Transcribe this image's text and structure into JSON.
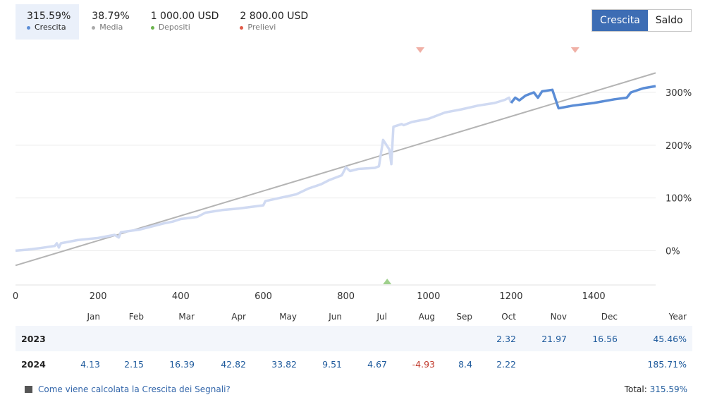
{
  "stats": [
    {
      "value": "315.59%",
      "label": "Crescita",
      "color": "#5b8dd6",
      "active": true
    },
    {
      "value": "38.79%",
      "label": "Media",
      "color": "#aaaaaa",
      "active": false
    },
    {
      "value": "1 000.00 USD",
      "label": "Depositi",
      "color": "#6bb34d",
      "active": false
    },
    {
      "value": "2 800.00 USD",
      "label": "Prelievi",
      "color": "#e05a48",
      "active": false
    }
  ],
  "toggle": {
    "growth": "Crescita",
    "balance": "Saldo"
  },
  "colors": {
    "accent": "#3d6db4",
    "growth_line": "#5b8dd6",
    "growth_line_faded": "#d0daf2",
    "trend_line": "#b4b4b4",
    "deposit": "#6bb34d",
    "withdrawal": "#f0b0a6",
    "negative": "#c0392b",
    "positive": "#1e5a9c"
  },
  "chart_data": {
    "type": "line",
    "title": "",
    "xlabel": "",
    "ylabel": "",
    "x_ticks": [
      0,
      200,
      400,
      600,
      800,
      1000,
      1200,
      1400
    ],
    "y_ticks": [
      "0%",
      "100%",
      "200%",
      "300%"
    ],
    "xlim": [
      0,
      1550
    ],
    "ylim": [
      -65,
      395
    ],
    "grid": true,
    "series": [
      {
        "name": "Crescita",
        "points": [
          [
            0,
            0
          ],
          [
            30,
            2
          ],
          [
            60,
            5
          ],
          [
            95,
            9
          ],
          [
            100,
            14
          ],
          [
            105,
            6
          ],
          [
            110,
            14
          ],
          [
            150,
            20
          ],
          [
            200,
            24
          ],
          [
            240,
            30
          ],
          [
            250,
            25
          ],
          [
            255,
            35
          ],
          [
            300,
            40
          ],
          [
            340,
            48
          ],
          [
            360,
            52
          ],
          [
            380,
            55
          ],
          [
            400,
            60
          ],
          [
            440,
            64
          ],
          [
            460,
            72
          ],
          [
            500,
            77
          ],
          [
            540,
            80
          ],
          [
            600,
            86
          ],
          [
            605,
            94
          ],
          [
            640,
            100
          ],
          [
            680,
            107
          ],
          [
            710,
            118
          ],
          [
            740,
            126
          ],
          [
            760,
            134
          ],
          [
            790,
            143
          ],
          [
            800,
            158
          ],
          [
            810,
            151
          ],
          [
            830,
            155
          ],
          [
            870,
            157
          ],
          [
            880,
            160
          ],
          [
            890,
            210
          ],
          [
            905,
            192
          ],
          [
            910,
            164
          ],
          [
            915,
            235
          ],
          [
            935,
            240
          ],
          [
            940,
            238
          ],
          [
            960,
            244
          ],
          [
            1000,
            250
          ],
          [
            1040,
            262
          ],
          [
            1080,
            268
          ],
          [
            1120,
            275
          ],
          [
            1160,
            280
          ],
          [
            1185,
            286
          ],
          [
            1195,
            290
          ],
          [
            1200,
            280
          ],
          [
            1210,
            290
          ],
          [
            1220,
            285
          ],
          [
            1235,
            294
          ],
          [
            1255,
            300
          ],
          [
            1265,
            290
          ],
          [
            1275,
            302
          ],
          [
            1300,
            305
          ],
          [
            1315,
            270
          ],
          [
            1350,
            275
          ],
          [
            1400,
            280
          ],
          [
            1450,
            287
          ],
          [
            1480,
            290
          ],
          [
            1490,
            300
          ],
          [
            1520,
            308
          ],
          [
            1550,
            312
          ]
        ]
      },
      {
        "name": "Trend",
        "points": [
          [
            0,
            -28
          ],
          [
            1550,
            337
          ]
        ]
      }
    ],
    "highlight_from_x": 1200,
    "markers": [
      {
        "type": "Prelievi",
        "x": 980
      },
      {
        "type": "Prelievi",
        "x": 1355
      },
      {
        "type": "Depositi",
        "x": 900
      }
    ]
  },
  "table": {
    "headers": [
      "",
      "Jan",
      "Feb",
      "Mar",
      "Apr",
      "May",
      "Jun",
      "Jul",
      "Aug",
      "Sep",
      "Oct",
      "Nov",
      "Dec",
      "Year"
    ],
    "rows": [
      {
        "year": "2023",
        "values": [
          "",
          "",
          "",
          "",
          "",
          "",
          "",
          "",
          "",
          "2.32",
          "21.97",
          "16.56"
        ],
        "total": "45.46%"
      },
      {
        "year": "2024",
        "values": [
          "4.13",
          "2.15",
          "16.39",
          "42.82",
          "33.82",
          "9.51",
          "4.67",
          "-4.93",
          "8.4",
          "2.22",
          "",
          ""
        ],
        "total": "185.71%"
      }
    ]
  },
  "footer": {
    "link": "Come viene calcolata la Crescita dei Segnali?",
    "total_label": "Total:",
    "total_value": "315.59%"
  }
}
